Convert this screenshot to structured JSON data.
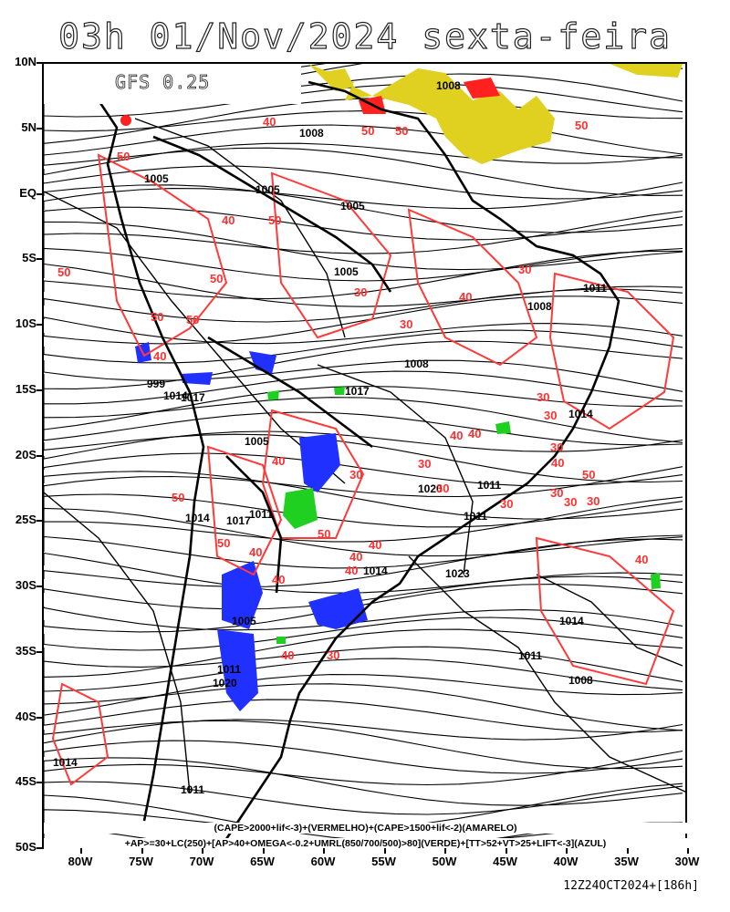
{
  "title": "03h 01/Nov/2024 sexta-feira",
  "model": "GFS 0.25",
  "lat_labels": [
    "10N",
    "5N",
    "EQ",
    "5S",
    "10S",
    "15S",
    "20S",
    "25S",
    "30S",
    "35S",
    "40S",
    "45S",
    "50S"
  ],
  "lon_labels": [
    "80W",
    "75W",
    "70W",
    "65W",
    "60W",
    "55W",
    "50W",
    "45W",
    "40W",
    "35W",
    "30W"
  ],
  "legend_line1": "(CAPE>2000+lif<-3)+(VERMELHO)+(CAPE>1500+lif<-2)(AMARELO)",
  "legend_line2": "+AP>=30+LC(250)+[AP>40+OMEGA<-0.2+UMRL(850/700/500)>80](VERDE)+[TT>52+VT>25+LIFT<-3](AZUL)",
  "run_label": "12Z24OCT2024+[186h]",
  "colors": {
    "cape_red": "#ff2020",
    "cape_yellow": "#e0d020",
    "green": "#20d020",
    "blue": "#2030ff",
    "contour_red": "#ff3030",
    "streamline": "#000000"
  },
  "pressure_labels": [
    "1008",
    "1008",
    "1005",
    "1005",
    "1005",
    "1005",
    "1008",
    "1011",
    "1008",
    "1005",
    "1017",
    "1017",
    "1014",
    "1011",
    "1011",
    "1014",
    "1014",
    "1011",
    "1017",
    "1020",
    "1023",
    "1014",
    "1011",
    "1008",
    "1011",
    "1005",
    "1014",
    "1011",
    "1020",
    "999",
    "1014"
  ],
  "wind_labels": [
    "50",
    "50",
    "50",
    "40",
    "50",
    "40",
    "50",
    "50",
    "50",
    "40",
    "30",
    "30",
    "50",
    "50",
    "50",
    "40",
    "40",
    "50",
    "50",
    "40",
    "40",
    "30",
    "30",
    "40",
    "30",
    "30",
    "40",
    "30",
    "30",
    "40",
    "40",
    "50",
    "30",
    "40",
    "30",
    "40",
    "40",
    "40",
    "30",
    "30",
    "30",
    "30"
  ]
}
